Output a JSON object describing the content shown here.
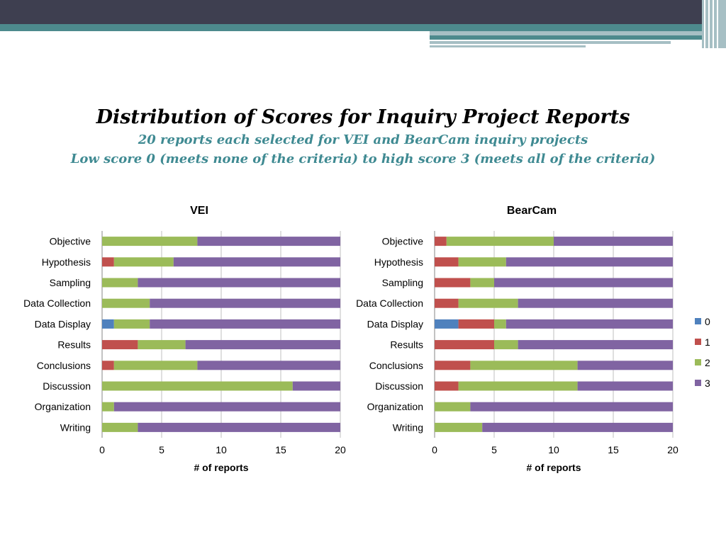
{
  "slide": {
    "title": "Distribution of Scores for Inquiry Project Reports",
    "subtitle_1": "20 reports each selected for VEI and BearCam inquiry projects",
    "subtitle_2": "Low score 0 (meets none of the criteria) to high score 3 (meets all of the criteria)",
    "subtitle_color": "#3f8a92"
  },
  "banner": {
    "dark_color": "#3e3f50",
    "teal_color": "#4d8a8d",
    "light_color": "#a6bfc4"
  },
  "legend": {
    "entries": [
      "0",
      "1",
      "2",
      "3"
    ],
    "colors": [
      "#4f81bd",
      "#c0504d",
      "#9bbb59",
      "#8064a2"
    ]
  },
  "chart_data": [
    {
      "type": "bar",
      "orientation": "horizontal",
      "stacked": true,
      "title": "VEI",
      "xlabel": "# of reports",
      "ylabel": "",
      "xlim": [
        0,
        20
      ],
      "xticks": [
        "0",
        "5",
        "10",
        "15",
        "20"
      ],
      "grid": true,
      "categories": [
        "Objective",
        "Hypothesis",
        "Sampling",
        "Data Collection",
        "Data Display",
        "Results",
        "Conclusions",
        "Discussion",
        "Organization",
        "Writing"
      ],
      "series": [
        {
          "name": "0",
          "values": [
            0,
            0,
            0,
            0,
            1,
            0,
            0,
            0,
            0,
            0
          ]
        },
        {
          "name": "1",
          "values": [
            0,
            1,
            0,
            0,
            0,
            3,
            1,
            0,
            0,
            0
          ]
        },
        {
          "name": "2",
          "values": [
            8,
            5,
            3,
            4,
            3,
            4,
            7,
            16,
            1,
            3
          ]
        },
        {
          "name": "3",
          "values": [
            12,
            14,
            17,
            16,
            16,
            13,
            12,
            4,
            19,
            17
          ]
        }
      ]
    },
    {
      "type": "bar",
      "orientation": "horizontal",
      "stacked": true,
      "title": "BearCam",
      "xlabel": "# of reports",
      "ylabel": "",
      "xlim": [
        0,
        20
      ],
      "xticks": [
        "0",
        "5",
        "10",
        "15",
        "20"
      ],
      "grid": true,
      "legend_position": "right",
      "categories": [
        "Objective",
        "Hypothesis",
        "Sampling",
        "Data Collection",
        "Data Display",
        "Results",
        "Conclusions",
        "Discussion",
        "Organization",
        "Writing"
      ],
      "series": [
        {
          "name": "0",
          "values": [
            0,
            0,
            0,
            0,
            2,
            0,
            0,
            0,
            0,
            0
          ]
        },
        {
          "name": "1",
          "values": [
            1,
            2,
            3,
            2,
            3,
            5,
            3,
            2,
            0,
            0
          ]
        },
        {
          "name": "2",
          "values": [
            9,
            4,
            2,
            5,
            1,
            2,
            9,
            10,
            3,
            4
          ]
        },
        {
          "name": "3",
          "values": [
            10,
            14,
            15,
            13,
            14,
            13,
            8,
            8,
            17,
            16
          ]
        }
      ]
    }
  ]
}
